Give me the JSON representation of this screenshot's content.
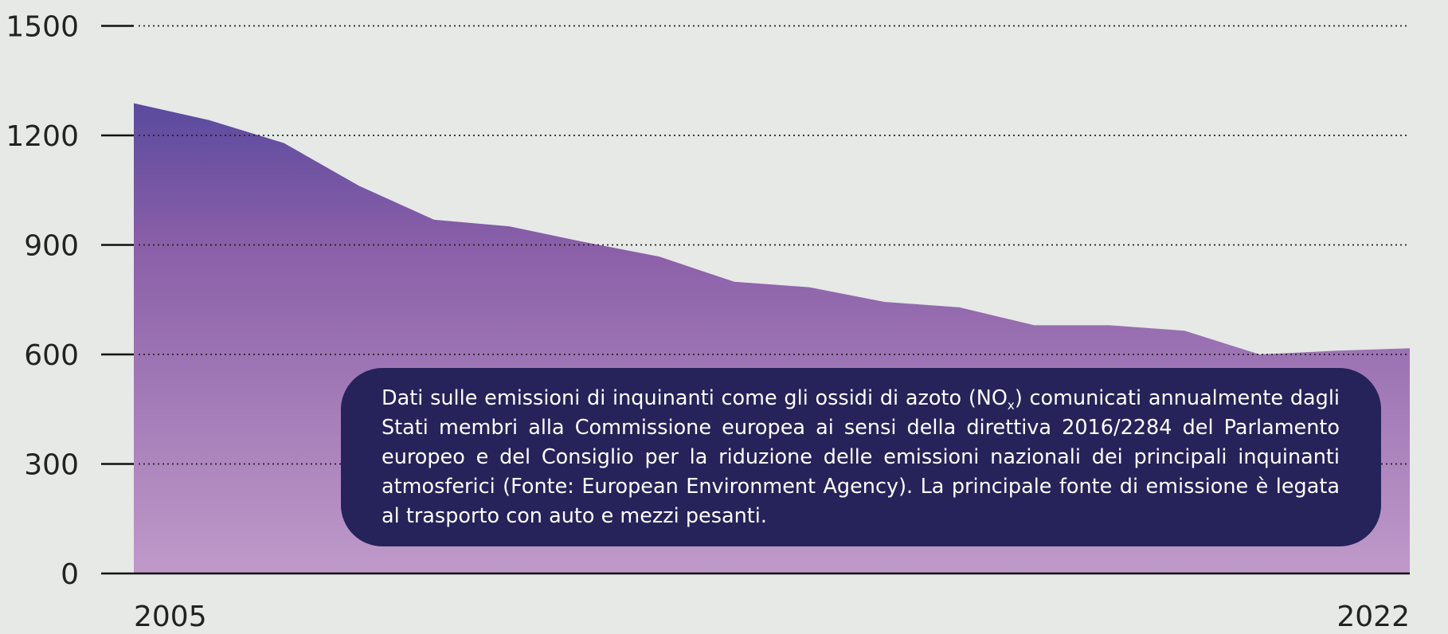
{
  "chart_data": {
    "type": "area",
    "x": [
      2005,
      2006,
      2007,
      2008,
      2009,
      2010,
      2011,
      2012,
      2013,
      2014,
      2015,
      2016,
      2017,
      2018,
      2019,
      2020,
      2021,
      2022
    ],
    "values": [
      1288,
      1242,
      1179,
      1062,
      969,
      951,
      908,
      868,
      799,
      784,
      744,
      729,
      680,
      680,
      665,
      600,
      610,
      617
    ],
    "xlim": [
      2005,
      2022
    ],
    "xticks": [
      2005,
      2022
    ],
    "ylim": [
      0,
      1500
    ],
    "yticks": [
      0,
      300,
      600,
      900,
      1200,
      1500
    ],
    "grid": true,
    "color_top": "#5a4a9e",
    "color_bottom": "#bf9ac9",
    "annotation": {
      "text_before": "Dati sulle emissioni di inquinanti come gli ossidi di azoto (NO",
      "subscript": "x",
      "text_after": ") comunicati annualmente dagli Stati membri alla Commissione europea ai sensi della direttiva 2016/2284 del Parlamento europeo e del Consiglio per la riduzione delle emissioni nazionali dei principali inquinanti atmosferici (Fonte: European Environment Agency). La principale fonte di emissione è legata al trasporto con auto e mezzi pesanti."
    }
  }
}
